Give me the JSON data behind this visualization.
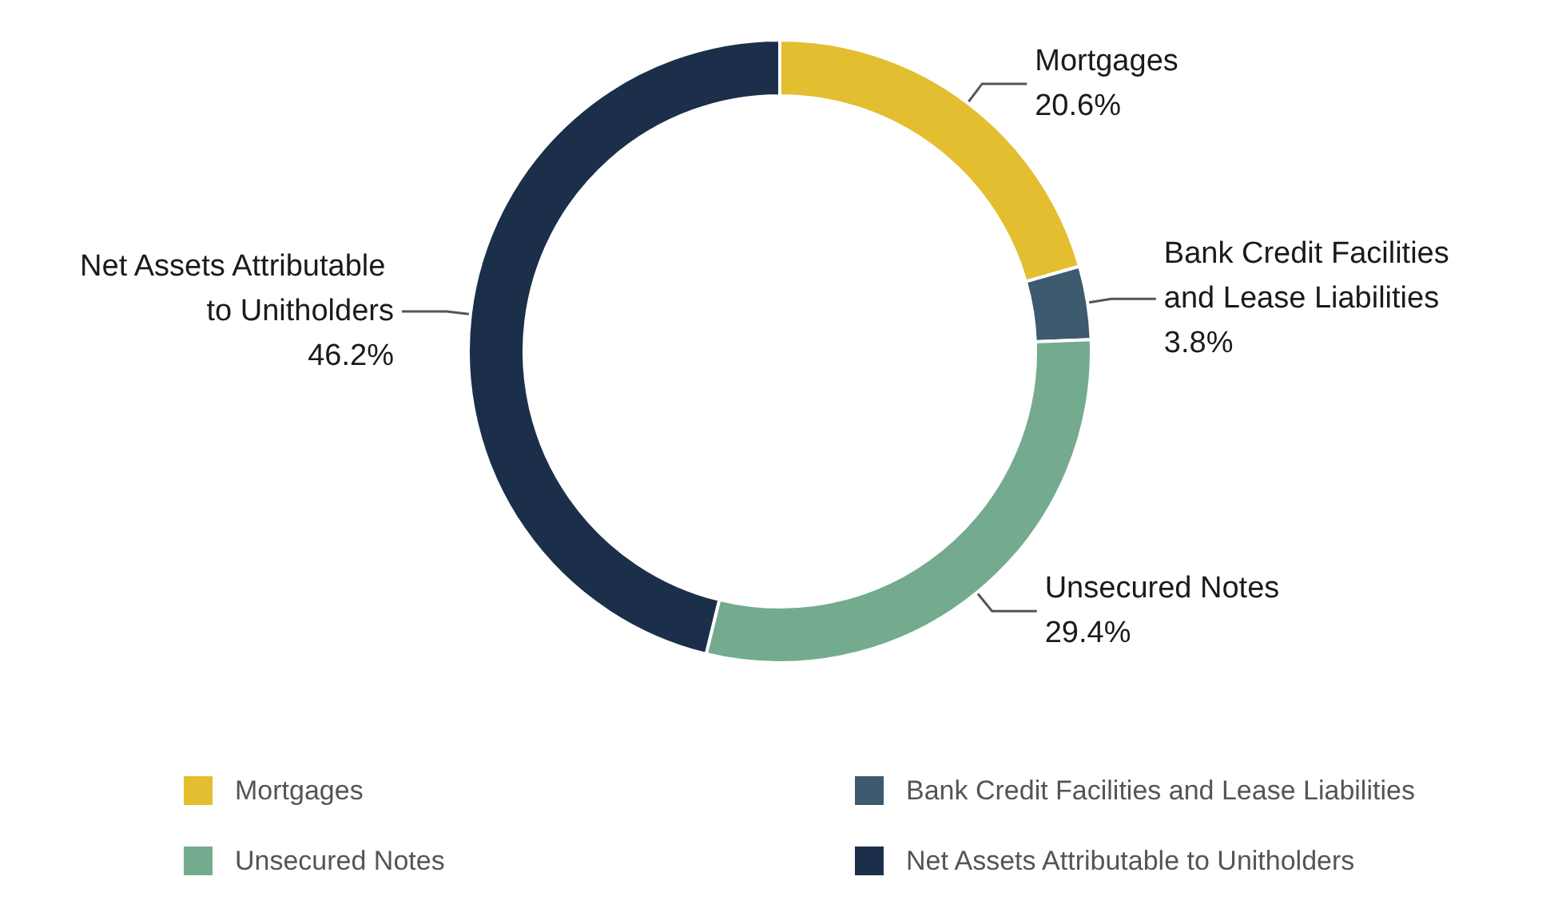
{
  "chart_data": {
    "type": "donut",
    "categories": [
      "Mortgages",
      "Bank Credit Facilities and Lease Liabilities",
      "Unsecured Notes",
      "Net Assets Attributable to Unitholders"
    ],
    "values": [
      20.6,
      3.8,
      29.4,
      46.2
    ],
    "value_labels": [
      "20.6%",
      "3.8%",
      "29.4%",
      "46.2%"
    ],
    "colors": [
      "#e3be30",
      "#3d5a6e",
      "#74ab8f",
      "#1b2f4a"
    ],
    "legend": "bottom"
  }
}
